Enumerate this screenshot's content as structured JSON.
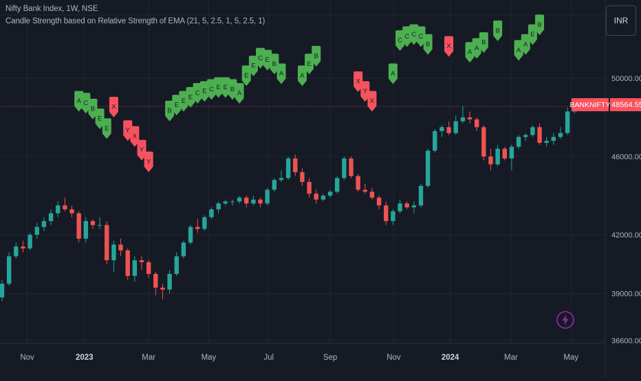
{
  "header": {
    "title": "Nifty Bank Index, 1W, NSE",
    "indicator": "Candle Strength based on Relative Strength of EMA (21, 5, 2.5, 1, 5, 2.5, 1)"
  },
  "currency_button": "INR",
  "last_price": {
    "symbol": "BANKNIFTY",
    "value": "48564.55",
    "price": 48564.55
  },
  "colors": {
    "background": "#161a25",
    "grid": "#232632",
    "up": "#26a69a",
    "down": "#ef5350",
    "label_up": "#4caf50",
    "label_down": "#f7525f",
    "axis_text": "#b2b5be",
    "lightning": "#9c27b0"
  },
  "chart_data": {
    "type": "candlestick",
    "title": "Nifty Bank Index, 1W, NSE",
    "y_ticks": [
      36600,
      39000,
      42000,
      46000,
      50000
    ],
    "y_tick_labels": [
      "36600.00",
      "39000.00",
      "42000.00",
      "46000.00",
      "50000.00"
    ],
    "ylim": [
      36300,
      51600
    ],
    "x_labels": [
      "Nov",
      "2023",
      "Mar",
      "May",
      "Jul",
      "Sep",
      "Nov",
      "2024",
      "Mar",
      "May"
    ],
    "x_label_bold": [
      false,
      true,
      false,
      false,
      false,
      false,
      false,
      true,
      false,
      false
    ],
    "x_label_weeks": [
      3.6,
      11.8,
      21.0,
      29.6,
      38.2,
      47.0,
      56.1,
      64.2,
      72.9,
      81.5
    ],
    "candles": [
      {
        "w": 0,
        "o": 38800,
        "h": 39700,
        "l": 38600,
        "c": 39500
      },
      {
        "w": 1,
        "o": 39500,
        "h": 41100,
        "l": 39400,
        "c": 40900
      },
      {
        "w": 2,
        "o": 40900,
        "h": 41600,
        "l": 40800,
        "c": 41400
      },
      {
        "w": 3,
        "o": 41400,
        "h": 41700,
        "l": 41100,
        "c": 41300
      },
      {
        "w": 4,
        "o": 41300,
        "h": 42100,
        "l": 41200,
        "c": 42000
      },
      {
        "w": 5,
        "o": 42000,
        "h": 42600,
        "l": 41800,
        "c": 42400
      },
      {
        "w": 6,
        "o": 42400,
        "h": 42900,
        "l": 42200,
        "c": 42700
      },
      {
        "w": 7,
        "o": 42700,
        "h": 43300,
        "l": 42500,
        "c": 43100
      },
      {
        "w": 8,
        "o": 43100,
        "h": 43700,
        "l": 42900,
        "c": 43500
      },
      {
        "w": 9,
        "o": 43500,
        "h": 43900,
        "l": 43200,
        "c": 43300
      },
      {
        "w": 10,
        "o": 43300,
        "h": 43500,
        "l": 42900,
        "c": 43100
      },
      {
        "w": 11,
        "o": 43100,
        "h": 43200,
        "l": 41600,
        "c": 41800
      },
      {
        "w": 12,
        "o": 41800,
        "h": 42900,
        "l": 41600,
        "c": 42700
      },
      {
        "w": 13,
        "o": 42700,
        "h": 42800,
        "l": 42300,
        "c": 42500
      },
      {
        "w": 14,
        "o": 42500,
        "h": 42900,
        "l": 42300,
        "c": 42500
      },
      {
        "w": 15,
        "o": 42500,
        "h": 42700,
        "l": 40500,
        "c": 40700
      },
      {
        "w": 16,
        "o": 40700,
        "h": 41700,
        "l": 40100,
        "c": 41500
      },
      {
        "w": 17,
        "o": 41500,
        "h": 41800,
        "l": 40900,
        "c": 41200
      },
      {
        "w": 18,
        "o": 41200,
        "h": 41300,
        "l": 39700,
        "c": 39900
      },
      {
        "w": 19,
        "o": 39900,
        "h": 40900,
        "l": 39600,
        "c": 40700
      },
      {
        "w": 20,
        "o": 40700,
        "h": 40900,
        "l": 40200,
        "c": 40600
      },
      {
        "w": 21,
        "o": 40600,
        "h": 40700,
        "l": 39800,
        "c": 40000
      },
      {
        "w": 22,
        "o": 40000,
        "h": 40100,
        "l": 38900,
        "c": 39300
      },
      {
        "w": 23,
        "o": 39300,
        "h": 39500,
        "l": 38700,
        "c": 39200
      },
      {
        "w": 24,
        "o": 39200,
        "h": 40200,
        "l": 39000,
        "c": 40000
      },
      {
        "w": 25,
        "o": 40000,
        "h": 41100,
        "l": 39900,
        "c": 40900
      },
      {
        "w": 26,
        "o": 40900,
        "h": 41700,
        "l": 40800,
        "c": 41600
      },
      {
        "w": 27,
        "o": 41600,
        "h": 42500,
        "l": 41500,
        "c": 42400
      },
      {
        "w": 28,
        "o": 42400,
        "h": 42800,
        "l": 42100,
        "c": 42300
      },
      {
        "w": 29,
        "o": 42300,
        "h": 43000,
        "l": 42200,
        "c": 42900
      },
      {
        "w": 30,
        "o": 42900,
        "h": 43400,
        "l": 42800,
        "c": 43300
      },
      {
        "w": 31,
        "o": 43300,
        "h": 43700,
        "l": 43100,
        "c": 43600
      },
      {
        "w": 32,
        "o": 43600,
        "h": 43800,
        "l": 43500,
        "c": 43700
      },
      {
        "w": 33,
        "o": 43700,
        "h": 43800,
        "l": 43500,
        "c": 43700
      },
      {
        "w": 34,
        "o": 43700,
        "h": 44000,
        "l": 43600,
        "c": 43900
      },
      {
        "w": 35,
        "o": 43900,
        "h": 44000,
        "l": 43400,
        "c": 43600
      },
      {
        "w": 36,
        "o": 43600,
        "h": 44000,
        "l": 43500,
        "c": 43800
      },
      {
        "w": 37,
        "o": 43800,
        "h": 43900,
        "l": 43400,
        "c": 43600
      },
      {
        "w": 38,
        "o": 43600,
        "h": 44400,
        "l": 43500,
        "c": 44300
      },
      {
        "w": 39,
        "o": 44300,
        "h": 44900,
        "l": 44200,
        "c": 44800
      },
      {
        "w": 40,
        "o": 44800,
        "h": 45300,
        "l": 44700,
        "c": 44900
      },
      {
        "w": 41,
        "o": 44900,
        "h": 46000,
        "l": 44800,
        "c": 45900
      },
      {
        "w": 42,
        "o": 45900,
        "h": 46100,
        "l": 45000,
        "c": 45200
      },
      {
        "w": 43,
        "o": 45200,
        "h": 45400,
        "l": 44500,
        "c": 44700
      },
      {
        "w": 44,
        "o": 44700,
        "h": 44900,
        "l": 43900,
        "c": 44100
      },
      {
        "w": 45,
        "o": 44100,
        "h": 44300,
        "l": 43600,
        "c": 43800
      },
      {
        "w": 46,
        "o": 43800,
        "h": 44100,
        "l": 43700,
        "c": 44000
      },
      {
        "w": 47,
        "o": 44000,
        "h": 44300,
        "l": 43900,
        "c": 44200
      },
      {
        "w": 48,
        "o": 44200,
        "h": 45000,
        "l": 44100,
        "c": 44900
      },
      {
        "w": 49,
        "o": 44900,
        "h": 46000,
        "l": 44800,
        "c": 45900
      },
      {
        "w": 50,
        "o": 45900,
        "h": 46000,
        "l": 44900,
        "c": 45000
      },
      {
        "w": 51,
        "o": 45000,
        "h": 45100,
        "l": 44200,
        "c": 44300
      },
      {
        "w": 52,
        "o": 44300,
        "h": 44600,
        "l": 44100,
        "c": 44200
      },
      {
        "w": 53,
        "o": 44200,
        "h": 44400,
        "l": 43800,
        "c": 43900
      },
      {
        "w": 54,
        "o": 43900,
        "h": 44000,
        "l": 43300,
        "c": 43500
      },
      {
        "w": 55,
        "o": 43500,
        "h": 43700,
        "l": 42500,
        "c": 42700
      },
      {
        "w": 56,
        "o": 42700,
        "h": 43300,
        "l": 42500,
        "c": 43200
      },
      {
        "w": 57,
        "o": 43200,
        "h": 43800,
        "l": 43100,
        "c": 43600
      },
      {
        "w": 58,
        "o": 43600,
        "h": 43700,
        "l": 43300,
        "c": 43400
      },
      {
        "w": 59,
        "o": 43400,
        "h": 43700,
        "l": 43100,
        "c": 43500
      },
      {
        "w": 60,
        "o": 43500,
        "h": 44600,
        "l": 43400,
        "c": 44500
      },
      {
        "w": 61,
        "o": 44500,
        "h": 46400,
        "l": 44400,
        "c": 46300
      },
      {
        "w": 62,
        "o": 46300,
        "h": 47400,
        "l": 46200,
        "c": 47300
      },
      {
        "w": 63,
        "o": 47300,
        "h": 47600,
        "l": 47000,
        "c": 47500
      },
      {
        "w": 64,
        "o": 47500,
        "h": 47800,
        "l": 47100,
        "c": 47200
      },
      {
        "w": 65,
        "o": 47200,
        "h": 48100,
        "l": 47100,
        "c": 47800
      },
      {
        "w": 66,
        "o": 47800,
        "h": 48600,
        "l": 47700,
        "c": 48000
      },
      {
        "w": 67,
        "o": 48000,
        "h": 48300,
        "l": 47700,
        "c": 47900
      },
      {
        "w": 68,
        "o": 47900,
        "h": 48000,
        "l": 47300,
        "c": 47500
      },
      {
        "w": 69,
        "o": 47500,
        "h": 47600,
        "l": 45800,
        "c": 46000
      },
      {
        "w": 70,
        "o": 46000,
        "h": 46400,
        "l": 45300,
        "c": 45600
      },
      {
        "w": 71,
        "o": 45600,
        "h": 46600,
        "l": 45500,
        "c": 46400
      },
      {
        "w": 72,
        "o": 46400,
        "h": 46500,
        "l": 45800,
        "c": 45900
      },
      {
        "w": 73,
        "o": 45900,
        "h": 46600,
        "l": 45300,
        "c": 46500
      },
      {
        "w": 74,
        "o": 46500,
        "h": 47100,
        "l": 46400,
        "c": 47000
      },
      {
        "w": 75,
        "o": 47000,
        "h": 47200,
        "l": 46800,
        "c": 47100
      },
      {
        "w": 76,
        "o": 47100,
        "h": 47600,
        "l": 47000,
        "c": 47500
      },
      {
        "w": 77,
        "o": 47500,
        "h": 47700,
        "l": 46600,
        "c": 46700
      },
      {
        "w": 78,
        "o": 46700,
        "h": 47000,
        "l": 46500,
        "c": 46800
      },
      {
        "w": 79,
        "o": 46800,
        "h": 47200,
        "l": 46600,
        "c": 47000
      },
      {
        "w": 80,
        "o": 47000,
        "h": 47500,
        "l": 46900,
        "c": 47200
      },
      {
        "w": 81,
        "o": 47200,
        "h": 48500,
        "l": 47100,
        "c": 48300
      },
      {
        "w": 82,
        "o": 48300,
        "h": 48700,
        "l": 48200,
        "c": 48560
      }
    ],
    "signal_labels": [
      {
        "w": 11,
        "text": "A",
        "dir": "up",
        "price": 48300
      },
      {
        "w": 12,
        "text": "C",
        "dir": "up",
        "price": 48200
      },
      {
        "w": 13,
        "text": "B",
        "dir": "up",
        "price": 47900
      },
      {
        "w": 14,
        "text": "E",
        "dir": "up",
        "price": 47400
      },
      {
        "w": 15,
        "text": "E",
        "dir": "up",
        "price": 46900
      },
      {
        "w": 16,
        "text": "X",
        "dir": "down",
        "price": 48000
      },
      {
        "w": 18,
        "text": "Y",
        "dir": "down",
        "price": 46800
      },
      {
        "w": 19,
        "text": "X",
        "dir": "down",
        "price": 46500
      },
      {
        "w": 20,
        "text": "Y",
        "dir": "down",
        "price": 45800
      },
      {
        "w": 21,
        "text": "Y",
        "dir": "down",
        "price": 45200
      },
      {
        "w": 24,
        "text": "B",
        "dir": "up",
        "price": 47800
      },
      {
        "w": 25,
        "text": "E",
        "dir": "up",
        "price": 48100
      },
      {
        "w": 26,
        "text": "E",
        "dir": "up",
        "price": 48300
      },
      {
        "w": 27,
        "text": "E",
        "dir": "up",
        "price": 48500
      },
      {
        "w": 28,
        "text": "C",
        "dir": "up",
        "price": 48700
      },
      {
        "w": 29,
        "text": "E",
        "dir": "up",
        "price": 48800
      },
      {
        "w": 30,
        "text": "C",
        "dir": "up",
        "price": 48900
      },
      {
        "w": 31,
        "text": "E",
        "dir": "up",
        "price": 49000
      },
      {
        "w": 32,
        "text": "E",
        "dir": "up",
        "price": 49000
      },
      {
        "w": 33,
        "text": "B",
        "dir": "up",
        "price": 48900
      },
      {
        "w": 34,
        "text": "A",
        "dir": "up",
        "price": 48700
      },
      {
        "w": 35,
        "text": "E",
        "dir": "up",
        "price": 49600
      },
      {
        "w": 36,
        "text": "E",
        "dir": "up",
        "price": 50100
      },
      {
        "w": 37,
        "text": "C",
        "dir": "up",
        "price": 50500
      },
      {
        "w": 38,
        "text": "E",
        "dir": "up",
        "price": 50400
      },
      {
        "w": 39,
        "text": "B",
        "dir": "up",
        "price": 50200
      },
      {
        "w": 40,
        "text": "A",
        "dir": "up",
        "price": 49700
      },
      {
        "w": 43,
        "text": "A",
        "dir": "up",
        "price": 49600
      },
      {
        "w": 44,
        "text": "E",
        "dir": "up",
        "price": 50200
      },
      {
        "w": 45,
        "text": "B",
        "dir": "up",
        "price": 50600
      },
      {
        "w": 51,
        "text": "X",
        "dir": "down",
        "price": 49300
      },
      {
        "w": 52,
        "text": "Y",
        "dir": "down",
        "price": 48800
      },
      {
        "w": 53,
        "text": "X",
        "dir": "down",
        "price": 48300
      },
      {
        "w": 56,
        "text": "A",
        "dir": "up",
        "price": 49700
      },
      {
        "w": 57,
        "text": "C",
        "dir": "up",
        "price": 51400
      },
      {
        "w": 58,
        "text": "C",
        "dir": "up",
        "price": 51600
      },
      {
        "w": 59,
        "text": "C",
        "dir": "up",
        "price": 51700
      },
      {
        "w": 60,
        "text": "C",
        "dir": "up",
        "price": 51600
      },
      {
        "w": 61,
        "text": "B",
        "dir": "up",
        "price": 51200
      },
      {
        "w": 64,
        "text": "X",
        "dir": "down",
        "price": 51100
      },
      {
        "w": 67,
        "text": "A",
        "dir": "up",
        "price": 50800
      },
      {
        "w": 68,
        "text": "A",
        "dir": "up",
        "price": 51000
      },
      {
        "w": 69,
        "text": "B",
        "dir": "up",
        "price": 51300
      },
      {
        "w": 71,
        "text": "B",
        "dir": "up",
        "price": 51900
      },
      {
        "w": 74,
        "text": "A",
        "dir": "up",
        "price": 50900
      },
      {
        "w": 75,
        "text": "A",
        "dir": "up",
        "price": 51200
      },
      {
        "w": 76,
        "text": "E",
        "dir": "up",
        "price": 51700
      },
      {
        "w": 77,
        "text": "B",
        "dir": "up",
        "price": 52200
      }
    ]
  }
}
